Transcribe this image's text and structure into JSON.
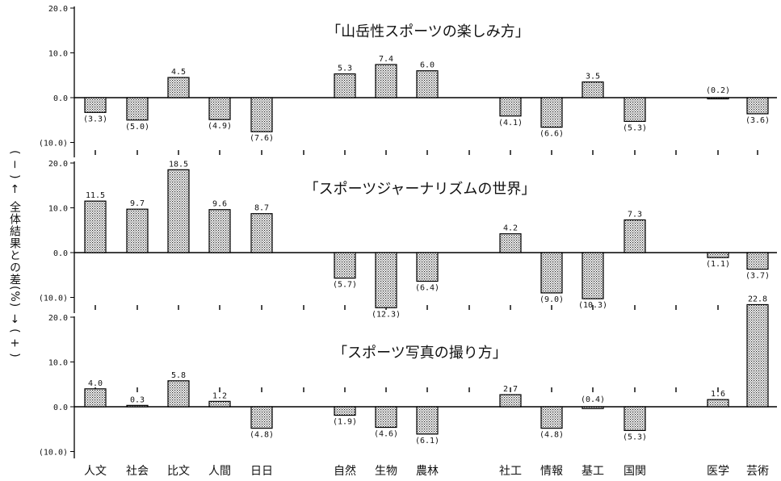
{
  "y_axis_title": {
    "minus": "( − ) ←",
    "main": "全体結果との差(%)",
    "plus": "→ ( + )"
  },
  "chart_data": [
    {
      "type": "bar",
      "title": "「山岳性スポーツの楽しみ方」",
      "categories": [
        "人文",
        "社会",
        "比文",
        "人間",
        "日日",
        "自然",
        "生物",
        "農林",
        "社工",
        "情報",
        "基工",
        "国関",
        "医学",
        "芸術"
      ],
      "values": [
        -3.3,
        -5.0,
        4.5,
        -4.9,
        -7.6,
        5.3,
        7.4,
        6.0,
        -4.1,
        -6.6,
        3.5,
        -5.3,
        -0.2,
        -3.6
      ],
      "data_labels": [
        "(3.3)",
        "(5.0)",
        "4.5",
        "(4.9)",
        "(7.6)",
        "5.3",
        "7.4",
        "6.0",
        "(4.1)",
        "(6.6)",
        "3.5",
        "(5.3)",
        "(0.2)",
        "(3.6)"
      ],
      "yticks": [
        "20.0",
        "10.0",
        "0.0",
        "(10.0)"
      ],
      "ylim": [
        -12,
        25
      ]
    },
    {
      "type": "bar",
      "title": "「スポーツジャーナリズムの世界」",
      "categories": [
        "人文",
        "社会",
        "比文",
        "人間",
        "日日",
        "自然",
        "生物",
        "農林",
        "社工",
        "情報",
        "基工",
        "国関",
        "医学",
        "芸術"
      ],
      "values": [
        11.5,
        9.7,
        18.5,
        9.6,
        8.7,
        -5.7,
        -12.3,
        -6.4,
        4.2,
        -9.0,
        -10.3,
        7.3,
        -1.1,
        -3.7
      ],
      "data_labels": [
        "11.5",
        "9.7",
        "18.5",
        "9.6",
        "8.7",
        "(5.7)",
        "(12.3)",
        "(6.4)",
        "4.2",
        "(9.0)",
        "(10.3)",
        "7.3",
        "(1.1)",
        "(3.7)"
      ],
      "yticks": [
        "20.0",
        "10.0",
        "0.0",
        "(10.0)"
      ],
      "ylim": [
        -14,
        25
      ]
    },
    {
      "type": "bar",
      "title": "「スポーツ写真の撮り方」",
      "categories": [
        "人文",
        "社会",
        "比文",
        "人間",
        "日日",
        "自然",
        "生物",
        "農林",
        "社工",
        "情報",
        "基工",
        "国関",
        "医学",
        "芸術"
      ],
      "values": [
        4.0,
        0.3,
        5.8,
        1.2,
        -4.8,
        -1.9,
        -4.6,
        -6.1,
        2.7,
        -4.8,
        -0.4,
        -5.3,
        1.6,
        22.8
      ],
      "data_labels": [
        "4.0",
        "0.3",
        "5.8",
        "1.2",
        "(4.8)",
        "(1.9)",
        "(4.6)",
        "(6.1)",
        "2.7",
        "(4.8)",
        "(0.4)",
        "(5.3)",
        "1.6",
        "22.8"
      ],
      "yticks": [
        "20.0",
        "10.0",
        "0.0",
        "(10.0)"
      ],
      "ylim": [
        -14,
        25
      ]
    }
  ]
}
